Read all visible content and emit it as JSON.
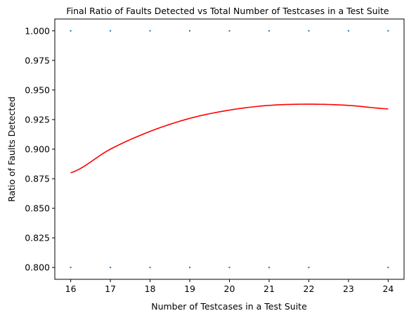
{
  "chart_data": {
    "type": "scatter",
    "title": "Final Ratio of Faults Detected vs Total Number of Testcases in a Test Suite",
    "xlabel": "Number of Testcases in a Test Suite",
    "ylabel": "Ratio of Faults Detected",
    "xlim": [
      15.6,
      24.4
    ],
    "ylim": [
      0.79,
      1.01
    ],
    "xticks": [
      "16",
      "17",
      "18",
      "19",
      "20",
      "21",
      "22",
      "23",
      "24"
    ],
    "yticks": [
      "0.800",
      "0.825",
      "0.850",
      "0.875",
      "0.900",
      "0.925",
      "0.950",
      "0.975",
      "1.000"
    ],
    "grid": false,
    "colors": {
      "points": "#1f77b4",
      "fit": "#ff0000"
    },
    "points": [
      {
        "x": 16,
        "y": 1.0
      },
      {
        "x": 17,
        "y": 1.0
      },
      {
        "x": 18,
        "y": 1.0
      },
      {
        "x": 19,
        "y": 1.0
      },
      {
        "x": 20,
        "y": 1.0
      },
      {
        "x": 21,
        "y": 1.0
      },
      {
        "x": 22,
        "y": 1.0
      },
      {
        "x": 23,
        "y": 1.0
      },
      {
        "x": 24,
        "y": 1.0
      },
      {
        "x": 16,
        "y": 0.8
      },
      {
        "x": 17,
        "y": 0.8
      },
      {
        "x": 18,
        "y": 0.8
      },
      {
        "x": 19,
        "y": 0.8
      },
      {
        "x": 20,
        "y": 0.8
      },
      {
        "x": 21,
        "y": 0.8
      },
      {
        "x": 22,
        "y": 0.8
      },
      {
        "x": 24,
        "y": 0.8
      }
    ],
    "fit_line": {
      "x": [
        16,
        17,
        18,
        19,
        20,
        21,
        22,
        23,
        24
      ],
      "y": [
        0.88,
        0.9,
        0.915,
        0.926,
        0.933,
        0.937,
        0.938,
        0.937,
        0.934
      ]
    }
  }
}
